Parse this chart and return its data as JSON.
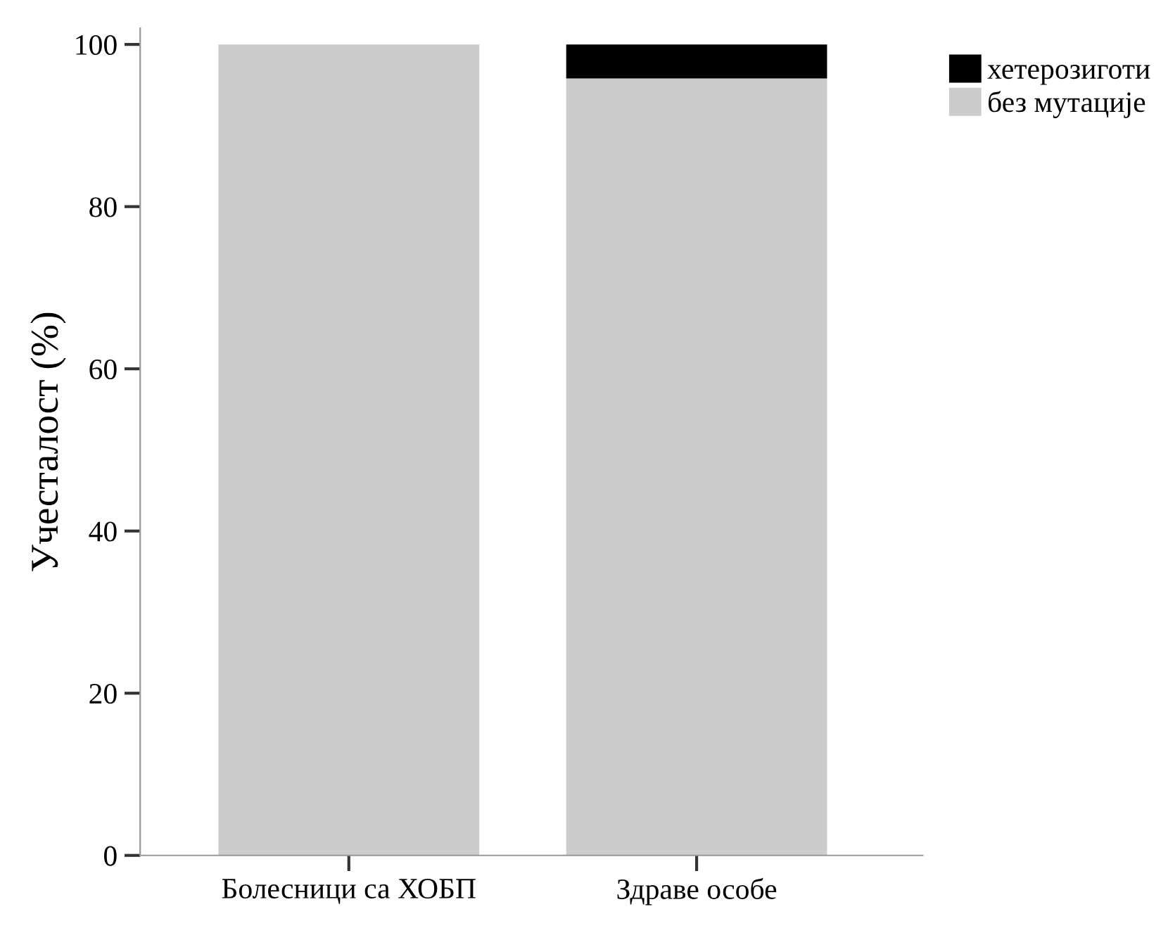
{
  "chart_data": {
    "type": "bar",
    "stacked": true,
    "ylabel": "Учесталост (%)",
    "categories": [
      "Болесници са ХОБП",
      "Здраве особе"
    ],
    "series": [
      {
        "name": "без мутације",
        "color": "#cccccc",
        "values": [
          100,
          95.8
        ]
      },
      {
        "name": "хетерозиготи",
        "color": "#000000",
        "values": [
          0,
          4.2
        ]
      }
    ],
    "ylim": [
      0,
      102
    ],
    "yticks": [
      0,
      20,
      40,
      60,
      80,
      100
    ],
    "legend": "top right",
    "grid": false
  }
}
